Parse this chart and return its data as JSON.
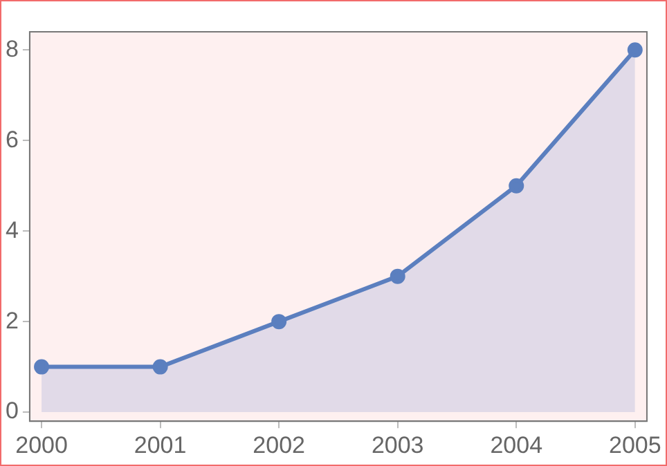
{
  "chart_data": {
    "type": "area",
    "x": [
      2000,
      2001,
      2002,
      2003,
      2004,
      2005
    ],
    "series": [
      {
        "color": "#5b7fbf",
        "values": [
          1,
          1,
          2,
          3,
          5,
          8
        ]
      }
    ],
    "xlim": [
      1999.9,
      2005.1
    ],
    "xticks": [
      2000,
      2001,
      2002,
      2003,
      2004,
      2005
    ],
    "ylim": [
      -0.2,
      8.4
    ],
    "yticks": [
      0,
      2,
      4,
      6,
      8
    ],
    "marker": "circle",
    "grid": false,
    "legend": false
  }
}
